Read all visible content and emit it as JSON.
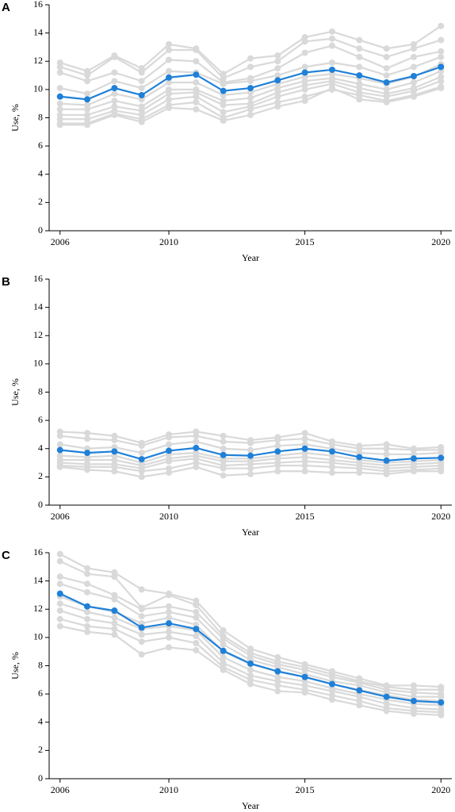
{
  "chart_data": [
    {
      "type": "line",
      "panel_label": "A",
      "ylabel": "Use, %",
      "xlabel": "Year",
      "x": [
        2006,
        2007,
        2008,
        2009,
        2010,
        2011,
        2012,
        2013,
        2014,
        2015,
        2016,
        2017,
        2018,
        2019,
        2020
      ],
      "xlim": [
        2005.6,
        2020.4
      ],
      "xticks": [
        2006,
        2010,
        2015,
        2020
      ],
      "ylim": [
        0,
        16
      ],
      "yticks": [
        0,
        2,
        4,
        6,
        8,
        10,
        12,
        14,
        16
      ],
      "series": [
        {
          "color": "#d9d9d9",
          "values": [
            11.9,
            11.3,
            12.4,
            11.5,
            13.2,
            12.9,
            11.1,
            12.2,
            12.4,
            13.7,
            14.1,
            13.5,
            12.9,
            13.2,
            14.5
          ]
        },
        {
          "color": "#d9d9d9",
          "values": [
            11.6,
            11.0,
            12.3,
            11.2,
            12.8,
            12.8,
            10.8,
            11.6,
            12.0,
            13.4,
            13.6,
            12.9,
            12.3,
            12.9,
            13.5
          ]
        },
        {
          "color": "#d9d9d9",
          "values": [
            11.2,
            10.6,
            11.2,
            10.6,
            12.1,
            12.0,
            10.5,
            10.8,
            11.5,
            12.6,
            13.1,
            12.3,
            11.5,
            12.3,
            12.7
          ]
        },
        {
          "color": "#d9d9d9",
          "values": [
            10.1,
            9.7,
            10.6,
            10.1,
            11.3,
            11.2,
            10.4,
            10.6,
            11.0,
            11.6,
            11.9,
            11.6,
            11.0,
            11.6,
            12.3
          ]
        },
        {
          "color": "#d9d9d9",
          "values": [
            9.0,
            8.9,
            9.7,
            9.3,
            10.5,
            10.5,
            9.6,
            9.8,
            10.4,
            10.9,
            11.1,
            10.8,
            10.4,
            10.9,
            11.8
          ]
        },
        {
          "color": "#d9d9d9",
          "values": [
            8.6,
            8.6,
            9.2,
            8.8,
            10.0,
            10.0,
            9.2,
            9.4,
            10.1,
            10.6,
            10.8,
            10.4,
            10.0,
            10.5,
            11.3
          ]
        },
        {
          "color": "#d9d9d9",
          "values": [
            8.2,
            8.2,
            8.8,
            8.5,
            9.7,
            9.8,
            8.9,
            9.0,
            9.8,
            10.3,
            10.6,
            10.1,
            9.7,
            10.1,
            10.9
          ]
        },
        {
          "color": "#d9d9d9",
          "values": [
            7.9,
            7.9,
            8.5,
            8.2,
            9.3,
            9.5,
            8.4,
            8.8,
            9.5,
            10.0,
            10.4,
            9.8,
            9.5,
            9.9,
            10.6
          ]
        },
        {
          "color": "#d9d9d9",
          "values": [
            7.6,
            7.6,
            8.3,
            7.9,
            8.9,
            9.1,
            8.0,
            8.6,
            9.1,
            9.5,
            10.0,
            9.6,
            9.2,
            9.6,
            10.2
          ]
        },
        {
          "color": "#d9d9d9",
          "values": [
            7.5,
            7.5,
            8.2,
            7.7,
            8.7,
            8.6,
            7.8,
            8.2,
            8.8,
            9.2,
            10.1,
            9.3,
            9.1,
            9.5,
            10.1
          ]
        },
        {
          "color": "#1f80d8",
          "values": [
            9.5,
            9.3,
            10.1,
            9.6,
            10.85,
            11.05,
            9.9,
            10.1,
            10.65,
            11.2,
            11.4,
            11.0,
            10.5,
            10.95,
            11.6
          ]
        }
      ]
    },
    {
      "type": "line",
      "panel_label": "B",
      "ylabel": "Use, %",
      "xlabel": "Year",
      "x": [
        2006,
        2007,
        2008,
        2009,
        2010,
        2011,
        2012,
        2013,
        2014,
        2015,
        2016,
        2017,
        2018,
        2019,
        2020
      ],
      "xlim": [
        2005.6,
        2020.4
      ],
      "xticks": [
        2006,
        2010,
        2015,
        2020
      ],
      "ylim": [
        0,
        16
      ],
      "yticks": [
        0,
        2,
        4,
        6,
        8,
        10,
        12,
        14,
        16
      ],
      "series": [
        {
          "color": "#d9d9d9",
          "values": [
            5.2,
            5.1,
            4.9,
            4.4,
            5.0,
            5.2,
            4.9,
            4.6,
            4.8,
            5.1,
            4.5,
            4.2,
            4.3,
            4.0,
            4.1
          ]
        },
        {
          "color": "#d9d9d9",
          "values": [
            4.9,
            4.7,
            4.6,
            4.2,
            4.8,
            4.9,
            4.5,
            4.4,
            4.6,
            4.7,
            4.3,
            4.0,
            4.0,
            3.9,
            3.9
          ]
        },
        {
          "color": "#d9d9d9",
          "values": [
            4.3,
            4.0,
            4.1,
            3.7,
            4.3,
            4.5,
            4.0,
            3.9,
            4.2,
            4.3,
            4.0,
            3.7,
            3.6,
            3.6,
            3.7
          ]
        },
        {
          "color": "#d9d9d9",
          "values": [
            3.5,
            3.4,
            3.5,
            3.0,
            3.6,
            3.7,
            3.3,
            3.3,
            3.5,
            3.7,
            3.5,
            3.2,
            3.0,
            3.1,
            3.2
          ]
        },
        {
          "color": "#d9d9d9",
          "values": [
            3.2,
            3.2,
            3.2,
            2.8,
            3.3,
            3.5,
            3.1,
            3.1,
            3.3,
            3.4,
            3.2,
            3.0,
            2.8,
            2.9,
            3.0
          ]
        },
        {
          "color": "#d9d9d9",
          "values": [
            3.0,
            2.9,
            2.9,
            2.6,
            3.1,
            3.3,
            2.8,
            2.9,
            3.0,
            3.1,
            3.0,
            2.8,
            2.6,
            2.7,
            2.8
          ]
        },
        {
          "color": "#d9d9d9",
          "values": [
            2.8,
            2.7,
            2.7,
            2.4,
            2.6,
            3.0,
            2.6,
            2.6,
            2.8,
            2.8,
            2.7,
            2.6,
            2.4,
            2.5,
            2.6
          ]
        },
        {
          "color": "#d9d9d9",
          "values": [
            2.7,
            2.5,
            2.4,
            2.0,
            2.3,
            2.7,
            2.1,
            2.2,
            2.4,
            2.4,
            2.3,
            2.3,
            2.2,
            2.4,
            2.4
          ]
        },
        {
          "color": "#1f80d8",
          "values": [
            3.9,
            3.7,
            3.8,
            3.25,
            3.85,
            4.05,
            3.55,
            3.5,
            3.8,
            4.0,
            3.8,
            3.4,
            3.15,
            3.3,
            3.35
          ]
        }
      ]
    },
    {
      "type": "line",
      "panel_label": "C",
      "ylabel": "Use, %",
      "xlabel": "Year",
      "x": [
        2006,
        2007,
        2008,
        2009,
        2010,
        2011,
        2012,
        2013,
        2014,
        2015,
        2016,
        2017,
        2018,
        2019,
        2020
      ],
      "xlim": [
        2005.6,
        2020.4
      ],
      "xticks": [
        2006,
        2010,
        2015,
        2020
      ],
      "ylim": [
        0,
        16
      ],
      "yticks": [
        0,
        2,
        4,
        6,
        8,
        10,
        12,
        14,
        16
      ],
      "series": [
        {
          "color": "#d9d9d9",
          "values": [
            15.9,
            14.9,
            14.6,
            13.4,
            13.1,
            12.6,
            10.5,
            9.2,
            8.6,
            8.1,
            7.6,
            7.1,
            6.6,
            6.6,
            6.5
          ]
        },
        {
          "color": "#d9d9d9",
          "values": [
            15.4,
            14.5,
            14.3,
            12.1,
            13.0,
            12.3,
            10.1,
            8.9,
            8.3,
            7.9,
            7.4,
            6.9,
            6.5,
            6.3,
            6.3
          ]
        },
        {
          "color": "#d9d9d9",
          "values": [
            14.3,
            13.8,
            13.0,
            12.0,
            12.2,
            11.8,
            9.9,
            8.7,
            8.1,
            7.7,
            7.2,
            6.8,
            6.3,
            6.1,
            6.0
          ]
        },
        {
          "color": "#d9d9d9",
          "values": [
            13.8,
            13.2,
            12.7,
            11.5,
            11.8,
            11.4,
            9.5,
            8.4,
            7.9,
            7.4,
            6.9,
            6.6,
            6.1,
            5.8,
            5.8
          ]
        },
        {
          "color": "#d9d9d9",
          "values": [
            12.9,
            12.2,
            11.8,
            11.0,
            11.4,
            10.9,
            9.0,
            8.1,
            7.6,
            7.2,
            6.7,
            6.3,
            5.9,
            5.6,
            5.5
          ]
        },
        {
          "color": "#d9d9d9",
          "values": [
            12.4,
            11.8,
            11.4,
            10.6,
            10.8,
            10.5,
            8.6,
            7.7,
            7.2,
            6.9,
            6.4,
            6.0,
            5.6,
            5.3,
            5.2
          ]
        },
        {
          "color": "#d9d9d9",
          "values": [
            11.9,
            11.3,
            11.0,
            10.2,
            10.4,
            10.1,
            8.2,
            7.3,
            6.9,
            6.6,
            6.2,
            5.8,
            5.3,
            5.0,
            4.9
          ]
        },
        {
          "color": "#d9d9d9",
          "values": [
            11.3,
            10.8,
            10.6,
            9.7,
            10.0,
            9.6,
            7.9,
            7.0,
            6.6,
            6.3,
            5.9,
            5.5,
            5.0,
            4.8,
            4.7
          ]
        },
        {
          "color": "#d9d9d9",
          "values": [
            10.8,
            10.4,
            10.2,
            8.8,
            9.3,
            9.1,
            7.7,
            6.7,
            6.2,
            6.1,
            5.6,
            5.2,
            4.8,
            4.6,
            4.5
          ]
        },
        {
          "color": "#1f80d8",
          "values": [
            13.1,
            12.2,
            11.9,
            10.7,
            11.0,
            10.6,
            9.05,
            8.15,
            7.6,
            7.2,
            6.7,
            6.25,
            5.8,
            5.5,
            5.4
          ]
        }
      ]
    }
  ]
}
